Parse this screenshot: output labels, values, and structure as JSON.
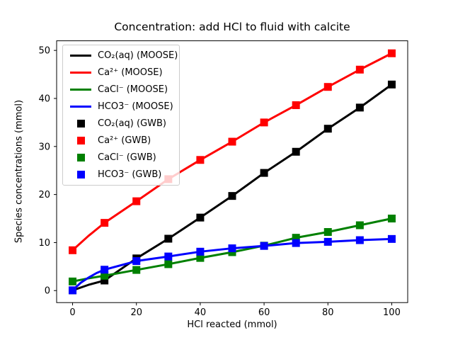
{
  "title": "Concentration: add HCl to fluid with calcite",
  "chart_data": {
    "type": "line",
    "title": "Concentration: add HCl to fluid with calcite",
    "xlabel": "HCl reacted (mmol)",
    "ylabel": "Species concentrations (mmol)",
    "xlim": [
      -5,
      105
    ],
    "ylim": [
      -2.5,
      52
    ],
    "xticks": [
      0,
      20,
      40,
      60,
      80,
      100
    ],
    "yticks": [
      0,
      10,
      20,
      30,
      40,
      50
    ],
    "grid": false,
    "legend_position": "upper-left",
    "colors": {
      "black": "#000000",
      "red": "#ff0000",
      "green": "#008000",
      "blue": "#0000ff"
    },
    "series": [
      {
        "name": "CO₂(aq) (MOOSE)",
        "style": "line",
        "color": "#000000",
        "x": [
          0,
          5,
          10,
          20,
          30,
          40,
          50,
          60,
          70,
          80,
          90,
          100
        ],
        "values": [
          0.05,
          1.2,
          2.1,
          6.7,
          10.8,
          15.2,
          19.7,
          24.5,
          28.9,
          33.7,
          38.1,
          42.9
        ]
      },
      {
        "name": "Ca²⁺ (MOOSE)",
        "style": "line",
        "color": "#ff0000",
        "x": [
          0,
          5,
          10,
          20,
          30,
          40,
          50,
          60,
          70,
          80,
          90,
          100
        ],
        "values": [
          8.4,
          11.4,
          14.1,
          18.6,
          23.2,
          27.2,
          31.0,
          35.0,
          38.6,
          42.4,
          46.0,
          49.4
        ]
      },
      {
        "name": "CaCl⁻ (MOOSE)",
        "style": "line",
        "color": "#008000",
        "x": [
          0,
          5,
          10,
          20,
          30,
          40,
          50,
          60,
          70,
          80,
          90,
          100
        ],
        "values": [
          1.9,
          2.55,
          3.1,
          4.3,
          5.5,
          6.8,
          8.0,
          9.35,
          11.0,
          12.2,
          13.6,
          15.0
        ]
      },
      {
        "name": "HCO3⁻ (MOOSE)",
        "style": "line",
        "color": "#0000ff",
        "x": [
          0,
          2.5,
          5,
          7.5,
          10,
          20,
          30,
          40,
          50,
          60,
          70,
          80,
          90,
          100
        ],
        "values": [
          0.05,
          1.6,
          2.7,
          3.65,
          4.35,
          6.15,
          7.1,
          8.1,
          8.8,
          9.3,
          9.9,
          10.15,
          10.5,
          10.75
        ]
      },
      {
        "name": "CO₂(aq) (GWB)",
        "style": "marker",
        "color": "#000000",
        "x": [
          0,
          10,
          20,
          30,
          40,
          50,
          60,
          70,
          80,
          90,
          100
        ],
        "values": [
          0.05,
          2.1,
          6.7,
          10.8,
          15.2,
          19.7,
          24.5,
          28.9,
          33.7,
          38.1,
          42.9
        ]
      },
      {
        "name": "Ca²⁺ (GWB)",
        "style": "marker",
        "color": "#ff0000",
        "x": [
          0,
          10,
          20,
          30,
          40,
          50,
          60,
          70,
          80,
          90,
          100
        ],
        "values": [
          8.4,
          14.1,
          18.6,
          23.2,
          27.2,
          31.0,
          35.0,
          38.6,
          42.4,
          46.0,
          49.4
        ]
      },
      {
        "name": "CaCl⁻ (GWB)",
        "style": "marker",
        "color": "#008000",
        "x": [
          0,
          10,
          20,
          30,
          40,
          50,
          60,
          70,
          80,
          90,
          100
        ],
        "values": [
          1.9,
          3.1,
          4.3,
          5.5,
          6.8,
          8.0,
          9.35,
          11.0,
          12.2,
          13.6,
          15.0
        ]
      },
      {
        "name": "HCO3⁻ (GWB)",
        "style": "marker",
        "color": "#0000ff",
        "x": [
          0,
          10,
          20,
          30,
          40,
          50,
          60,
          70,
          80,
          90,
          100
        ],
        "values": [
          0.05,
          4.35,
          6.15,
          7.1,
          8.1,
          8.8,
          9.3,
          9.9,
          10.15,
          10.5,
          10.75
        ]
      }
    ]
  }
}
